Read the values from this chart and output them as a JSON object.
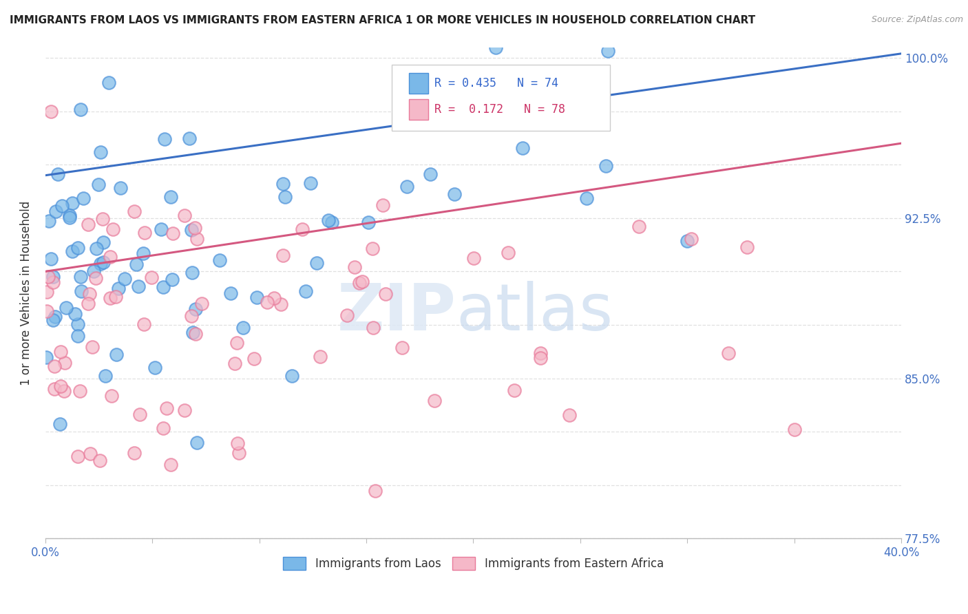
{
  "title": "IMMIGRANTS FROM LAOS VS IMMIGRANTS FROM EASTERN AFRICA 1 OR MORE VEHICLES IN HOUSEHOLD CORRELATION CHART",
  "source": "Source: ZipAtlas.com",
  "ylabel": "1 or more Vehicles in Household",
  "xlim": [
    0.0,
    0.4
  ],
  "ylim": [
    0.775,
    1.005
  ],
  "right_yticks": [
    0.775,
    0.85,
    0.925,
    1.0
  ],
  "right_yticklabels": [
    "77.5%",
    "85.0%",
    "92.5%",
    "100.0%"
  ],
  "xticks": [
    0.0,
    0.05,
    0.1,
    0.15,
    0.2,
    0.25,
    0.3,
    0.35,
    0.4
  ],
  "xticklabels": [
    "0.0%",
    "",
    "",
    "",
    "",
    "",
    "",
    "",
    "40.0%"
  ],
  "laos_color": "#7ab8e8",
  "laos_edge_color": "#4a90d9",
  "eastern_africa_color": "#f5b8c8",
  "eastern_africa_edge_color": "#e87a9a",
  "laos_line_color": "#3a6fc4",
  "ea_line_color": "#d45880",
  "laos_R": 0.435,
  "laos_N": 74,
  "eastern_africa_R": 0.172,
  "eastern_africa_N": 78,
  "legend_label_laos": "Immigrants from Laos",
  "legend_label_ea": "Immigrants from Eastern Africa",
  "background_color": "#ffffff",
  "grid_color": "#e0e0e0",
  "laos_trend_x0": 0.0,
  "laos_trend_y0": 0.945,
  "laos_trend_x1": 0.4,
  "laos_trend_y1": 1.002,
  "ea_trend_x0": 0.0,
  "ea_trend_y0": 0.9,
  "ea_trend_x1": 0.4,
  "ea_trend_y1": 0.96
}
